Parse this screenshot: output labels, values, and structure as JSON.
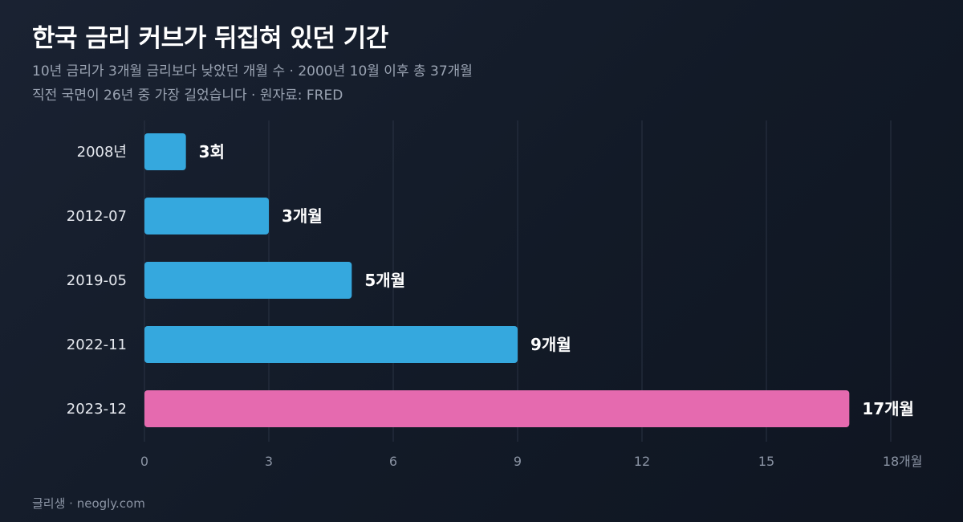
{
  "header": {
    "title": "한국 금리 커브가 뒤집혀 있던 기간",
    "subtitle_line1": "10년 금리가 3개월 금리보다 낮았던 개월 수  ·  2000년 10월 이후 총 37개월",
    "subtitle_line2": "직전 국면이 26년 중 가장 길었습니다  ·  원자료: FRED"
  },
  "footer": {
    "credit": "글리생 · neogly.com"
  },
  "colors": {
    "bar_default": "#35a8de",
    "bar_highlight": "#e56aaf",
    "grid": "#2a3344",
    "tick_text": "#8a93a3",
    "category_text": "#e6e9ef",
    "value_text": "#ffffff"
  },
  "chart_data": {
    "type": "bar",
    "orientation": "horizontal",
    "categories": [
      "2008년",
      "2012-07",
      "2019-05",
      "2022-11",
      "2023-12"
    ],
    "values": [
      1,
      3,
      5,
      9,
      17
    ],
    "value_labels": [
      "3회",
      "3개월",
      "5개월",
      "9개월",
      "17개월"
    ],
    "highlight_index": 4,
    "x_ticks": [
      "0",
      "3",
      "6",
      "9",
      "12",
      "15",
      "18"
    ],
    "x_tick_values": [
      0,
      3,
      6,
      9,
      12,
      15,
      18
    ],
    "x_unit": "개월",
    "xlim": [
      0,
      18
    ],
    "grid": true
  }
}
